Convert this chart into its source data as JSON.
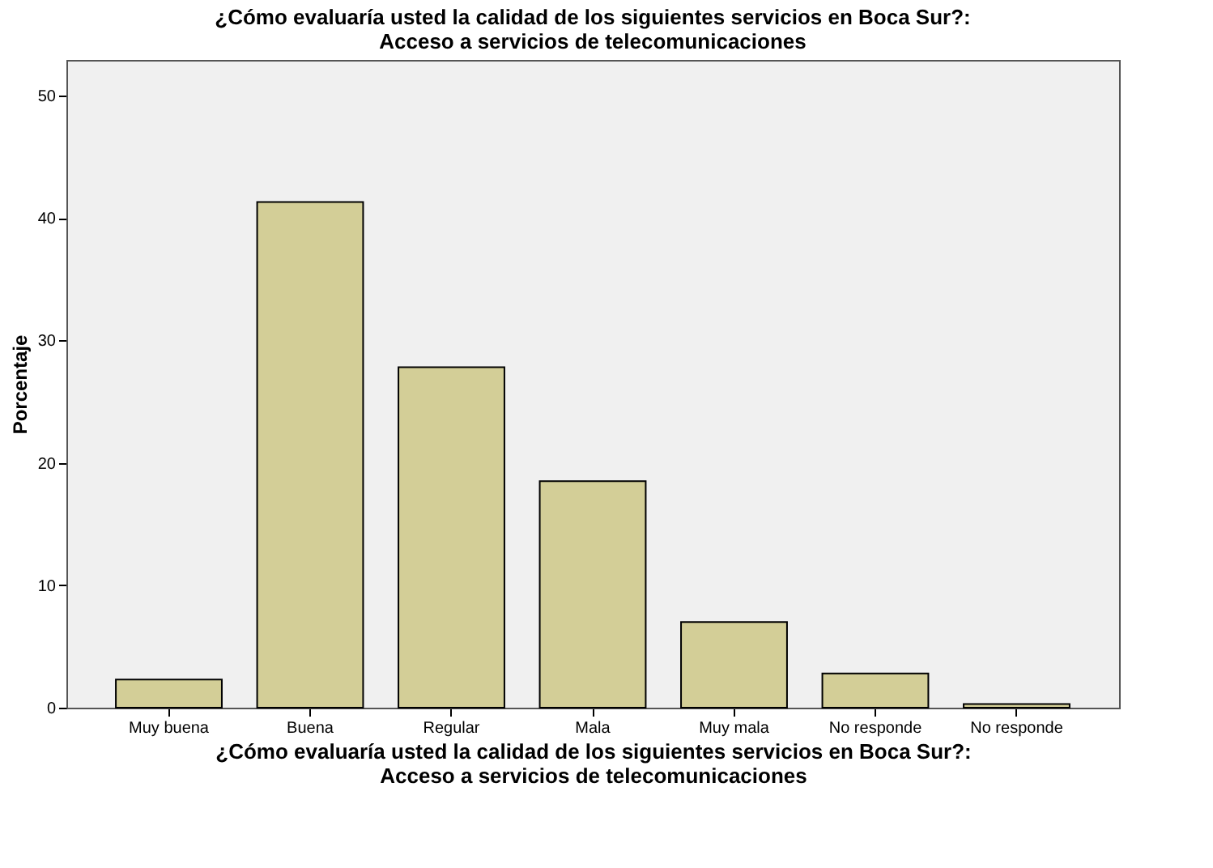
{
  "chart_data": {
    "type": "bar",
    "title": "¿Cómo evaluaría usted la calidad de los siguientes servicios en Boca Sur?:\nAcceso a servicios de telecomunicaciones",
    "xlabel": "¿Cómo evaluaría usted la calidad de los siguientes servicios en Boca Sur?:\nAcceso a servicios de telecomunicaciones",
    "ylabel": "Porcentaje",
    "categories": [
      "Muy buena",
      "Buena",
      "Regular",
      "Mala",
      "Muy mala",
      "No responde",
      "No responde"
    ],
    "values": [
      2.3,
      41.3,
      27.8,
      18.5,
      7.0,
      2.8,
      0.3
    ],
    "color": "#d3ce97",
    "ylim": [
      0,
      52.9
    ],
    "yticks": [
      0,
      10,
      20,
      30,
      40,
      50
    ],
    "grid": false
  }
}
